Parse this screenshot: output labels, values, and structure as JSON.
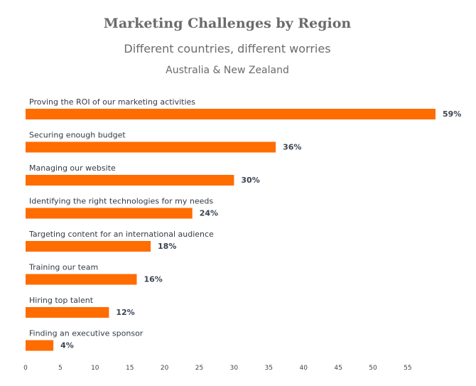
{
  "chart_data": {
    "type": "bar",
    "orientation": "horizontal",
    "title": "Marketing Challenges by Region",
    "subtitle": "Different countries, different worries",
    "region": "Australia & New Zealand",
    "categories": [
      "Proving the ROI of our marketing activities",
      "Securing enough budget",
      "Managing our website",
      "Identifying the right technologies for my needs",
      "Targeting content for an international audience",
      "Training our team",
      "Hiring top talent",
      "Finding an executive sponsor"
    ],
    "values": [
      59,
      36,
      30,
      24,
      18,
      16,
      12,
      4
    ],
    "value_labels": [
      "59%",
      "36%",
      "30%",
      "24%",
      "18%",
      "16%",
      "12%",
      "4%"
    ],
    "xlim": [
      0,
      60
    ],
    "xticks": [
      0,
      5,
      10,
      15,
      20,
      25,
      30,
      35,
      40,
      45,
      50,
      55
    ],
    "xtick_labels": [
      "0",
      "5",
      "10",
      "15",
      "20",
      "25",
      "30",
      "35",
      "40",
      "45",
      "50",
      "55"
    ],
    "bar_color": "#ff6c00",
    "grid": false,
    "legend": "none"
  }
}
